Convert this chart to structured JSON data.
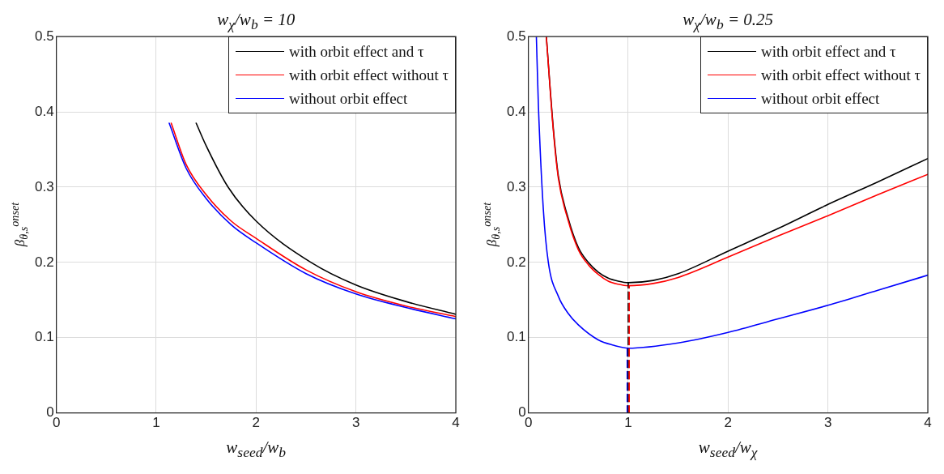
{
  "chart_data": [
    {
      "type": "line",
      "title": "w$_{χ}$/w$_{b}$ = 10",
      "xlabel": "w$_{seed}$/w$_{b}$",
      "ylabel": "β$_{θ,s}$$^{onset}$",
      "xlim": [
        0,
        4
      ],
      "xticks": [
        0,
        1,
        2,
        3,
        4
      ],
      "ylim": [
        0,
        0.5
      ],
      "yticks": [
        0,
        0.1,
        0.2,
        0.3,
        0.4,
        0.5
      ],
      "grid": true,
      "legend": "top right",
      "marker": "none",
      "series": [
        {
          "name": "with orbit effect and τ",
          "color": "#000000",
          "x": [
            1.4,
            1.5,
            1.72,
            2,
            2.55,
            3,
            3.5,
            4
          ],
          "values": [
            0.385,
            0.355,
            0.3,
            0.255,
            0.2,
            0.17,
            0.148,
            0.131
          ]
        },
        {
          "name": "with orbit effect without τ",
          "color": "#ff0000",
          "x": [
            1.15,
            1.3,
            1.5,
            1.75,
            2,
            2.5,
            3,
            3.5,
            4
          ],
          "values": [
            0.385,
            0.33,
            0.29,
            0.255,
            0.232,
            0.19,
            0.161,
            0.142,
            0.128
          ]
        },
        {
          "name": "without orbit effect",
          "color": "#0000ff",
          "x": [
            1.13,
            1.3,
            1.5,
            1.75,
            2,
            2.5,
            3,
            3.5,
            4
          ],
          "values": [
            0.385,
            0.325,
            0.285,
            0.25,
            0.226,
            0.185,
            0.158,
            0.14,
            0.125
          ]
        }
      ]
    },
    {
      "type": "line",
      "title": "w$_{χ}$/w$_{b}$ = 0.25",
      "xlabel": "w$_{seed}$/w$_{χ}$",
      "ylabel": "β$_{θ,s}$$^{onset}$",
      "xlim": [
        0,
        4
      ],
      "xticks": [
        0,
        1,
        2,
        3,
        4
      ],
      "ylim": [
        0,
        0.5
      ],
      "yticks": [
        0,
        0.1,
        0.2,
        0.3,
        0.4,
        0.5
      ],
      "grid": true,
      "legend": "top right",
      "marker": "none",
      "series": [
        {
          "name": "with orbit effect and τ",
          "color": "#000000",
          "x": [
            0.18,
            0.25,
            0.3,
            0.4,
            0.5,
            0.6,
            0.7,
            0.8,
            0.9,
            1,
            1.25,
            1.5,
            2,
            2.5,
            3,
            3.5,
            4
          ],
          "values": [
            0.5,
            0.378,
            0.315,
            0.258,
            0.22,
            0.2,
            0.187,
            0.179,
            0.175,
            0.173,
            0.176,
            0.185,
            0.215,
            0.245,
            0.277,
            0.307,
            0.338
          ]
        },
        {
          "name": "with orbit effect without τ",
          "color": "#ff0000",
          "x": [
            0.18,
            0.25,
            0.3,
            0.4,
            0.5,
            0.6,
            0.7,
            0.8,
            0.9,
            1,
            1.25,
            1.5,
            2,
            2.5,
            3,
            3.5,
            4
          ],
          "values": [
            0.5,
            0.375,
            0.312,
            0.255,
            0.217,
            0.197,
            0.184,
            0.175,
            0.171,
            0.169,
            0.172,
            0.18,
            0.207,
            0.235,
            0.262,
            0.29,
            0.317
          ]
        },
        {
          "name": "without orbit effect",
          "color": "#0000ff",
          "x": [
            0.08,
            0.1,
            0.15,
            0.2,
            0.3,
            0.4,
            0.5,
            0.7,
            0.85,
            1,
            1.5,
            2,
            2.5,
            3,
            3.5,
            4
          ],
          "values": [
            0.5,
            0.41,
            0.27,
            0.2,
            0.155,
            0.132,
            0.117,
            0.097,
            0.09,
            0.086,
            0.093,
            0.107,
            0.125,
            0.143,
            0.163,
            0.183
          ]
        },
        {
          "type": "line",
          "color": "#0000ff",
          "line_style": "dashed",
          "x": [
            0.99,
            0.99
          ],
          "values": [
            0,
            0.086
          ]
        },
        {
          "type": "line",
          "color": "#000000",
          "line_style": "dashed",
          "x": [
            1,
            1
          ],
          "values": [
            0,
            0.173
          ]
        },
        {
          "type": "line",
          "color": "#ff0000",
          "line_style": "dashed",
          "x": [
            1.01,
            1.01
          ],
          "values": [
            0,
            0.169
          ]
        }
      ]
    }
  ]
}
